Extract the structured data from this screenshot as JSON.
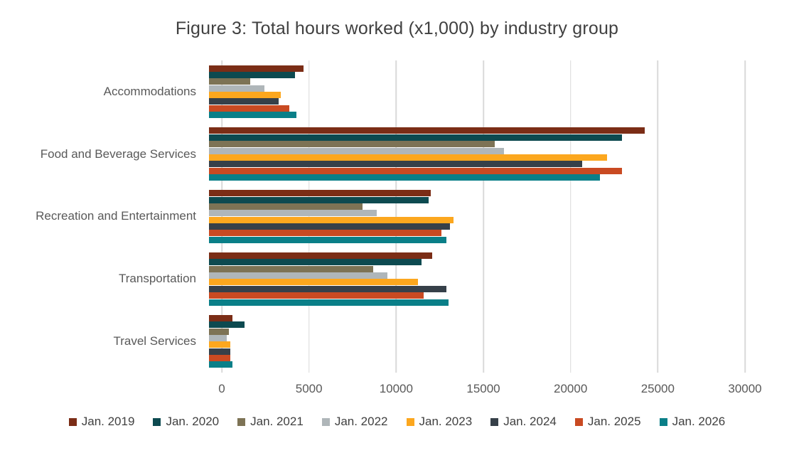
{
  "title": "Figure 3: Total hours worked (x1,000) by industry group",
  "chart_data": {
    "type": "bar",
    "orientation": "horizontal",
    "title": "Figure 3: Total hours worked (x1,000) by industry group",
    "categories": [
      "Accommodations",
      "Food and Beverage Services",
      "Recreation and Entertainment",
      "Transportation",
      "Travel Services"
    ],
    "series": [
      {
        "name": "Jan. 2019",
        "color": "#7b2d16",
        "values": [
          5300,
          24400,
          12400,
          12500,
          1300
        ]
      },
      {
        "name": "Jan. 2020",
        "color": "#0d4a50",
        "values": [
          4800,
          23100,
          12300,
          11900,
          2000
        ]
      },
      {
        "name": "Jan. 2021",
        "color": "#7d7355",
        "values": [
          2300,
          16000,
          8600,
          9200,
          1100
        ]
      },
      {
        "name": "Jan. 2022",
        "color": "#afb6b9",
        "values": [
          3100,
          16500,
          9400,
          10000,
          1000
        ]
      },
      {
        "name": "Jan. 2023",
        "color": "#fca71e",
        "values": [
          4000,
          22300,
          13700,
          11700,
          1200
        ]
      },
      {
        "name": "Jan. 2024",
        "color": "#364049",
        "values": [
          3900,
          20900,
          13500,
          13300,
          1200
        ]
      },
      {
        "name": "Jan. 2025",
        "color": "#c94a22",
        "values": [
          4500,
          23100,
          13000,
          12000,
          1200
        ]
      },
      {
        "name": "Jan. 2026",
        "color": "#0a7f88",
        "values": [
          4900,
          21900,
          13300,
          13400,
          1300
        ]
      }
    ],
    "x_ticks": [
      0,
      5000,
      10000,
      15000,
      20000,
      25000,
      30000
    ],
    "xlim": [
      0,
      30000
    ],
    "grid": "vertical",
    "gridline_color": "#d9d9d9",
    "legend_position": "bottom",
    "text_colors": {
      "title": "#404040",
      "axis": "#595959",
      "legend": "#404040"
    }
  }
}
